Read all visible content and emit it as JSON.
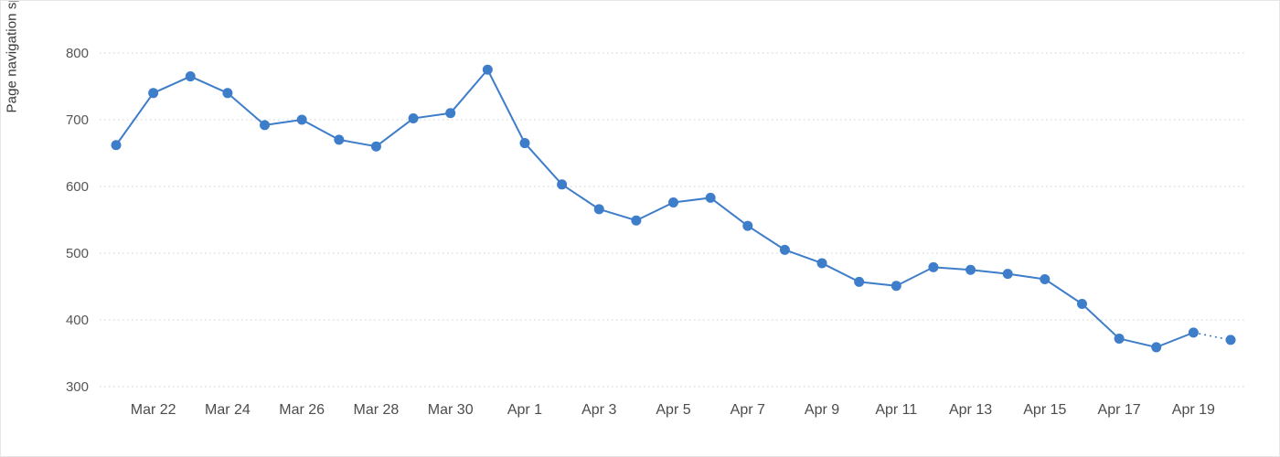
{
  "chart_data": {
    "type": "line",
    "title": "",
    "ylabel": "Page navigation speed (milliseconds)",
    "xlabel": "",
    "ylim": [
      300,
      800
    ],
    "yticks": [
      300,
      400,
      500,
      600,
      700,
      800
    ],
    "grid": "horizontal-dotted",
    "legend_position": "none",
    "line_color": "#3d7dca",
    "marker_color": "#3d7dca",
    "grid_color": "#cfcfcf",
    "last_segment_style": "dotted",
    "x": [
      "Mar 21",
      "Mar 22",
      "Mar 23",
      "Mar 24",
      "Mar 25",
      "Mar 26",
      "Mar 27",
      "Mar 28",
      "Mar 29",
      "Mar 30",
      "Mar 31",
      "Apr 1",
      "Apr 2",
      "Apr 3",
      "Apr 4",
      "Apr 5",
      "Apr 6",
      "Apr 7",
      "Apr 8",
      "Apr 9",
      "Apr 10",
      "Apr 11",
      "Apr 12",
      "Apr 13",
      "Apr 14",
      "Apr 15",
      "Apr 16",
      "Apr 17",
      "Apr 18",
      "Apr 19",
      "Apr 20"
    ],
    "values": [
      662,
      740,
      765,
      740,
      692,
      700,
      670,
      660,
      702,
      710,
      775,
      665,
      603,
      566,
      549,
      576,
      583,
      541,
      505,
      485,
      457,
      451,
      479,
      475,
      469,
      461,
      424,
      372,
      359,
      381,
      370
    ],
    "x_tick_labels": [
      "Mar 22",
      "Mar 24",
      "Mar 26",
      "Mar 28",
      "Mar 30",
      "Apr 1",
      "Apr 3",
      "Apr 5",
      "Apr 7",
      "Apr 9",
      "Apr 11",
      "Apr 13",
      "Apr 15",
      "Apr 17",
      "Apr 19"
    ],
    "x_tick_indices": [
      1,
      3,
      5,
      7,
      9,
      11,
      13,
      15,
      17,
      19,
      21,
      23,
      25,
      27,
      29
    ]
  }
}
